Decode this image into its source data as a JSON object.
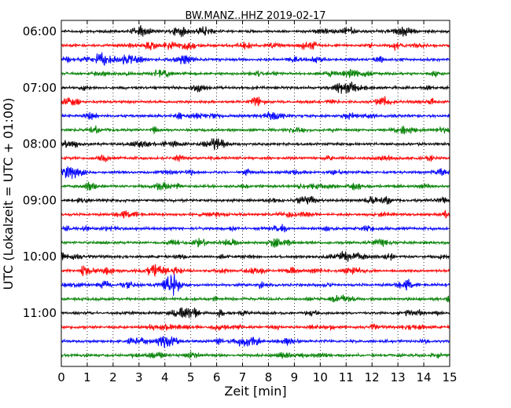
{
  "chart_data": {
    "type": "line",
    "title": "BW.MANZ..HHZ 2019-02-17",
    "xlabel": "Zeit  [min]",
    "ylabel": "UTC (Lokalzeit = UTC + 01:00)",
    "xlim": [
      0,
      15
    ],
    "x_ticks": [
      "0",
      "1",
      "2",
      "3",
      "4",
      "5",
      "6",
      "7",
      "8",
      "9",
      "10",
      "11",
      "12",
      "13",
      "14",
      "15"
    ],
    "y_tick_labels": [
      "06:00",
      "07:00",
      "08:00",
      "09:00",
      "10:00",
      "11:00"
    ],
    "grid": {
      "x": "dotted vertical at each minute",
      "y": false
    },
    "trace_colors": [
      "#000000",
      "#ff0000",
      "#0000ff",
      "#008000"
    ],
    "traces": [
      {
        "start": "06:00",
        "color": "#000000"
      },
      {
        "start": "06:15",
        "color": "#ff0000"
      },
      {
        "start": "06:30",
        "color": "#0000ff"
      },
      {
        "start": "06:45",
        "color": "#008000"
      },
      {
        "start": "07:00",
        "color": "#000000"
      },
      {
        "start": "07:15",
        "color": "#ff0000"
      },
      {
        "start": "07:30",
        "color": "#0000ff"
      },
      {
        "start": "07:45",
        "color": "#008000"
      },
      {
        "start": "08:00",
        "color": "#000000"
      },
      {
        "start": "08:15",
        "color": "#ff0000"
      },
      {
        "start": "08:30",
        "color": "#0000ff"
      },
      {
        "start": "08:45",
        "color": "#008000"
      },
      {
        "start": "09:00",
        "color": "#000000"
      },
      {
        "start": "09:15",
        "color": "#ff0000"
      },
      {
        "start": "09:30",
        "color": "#0000ff"
      },
      {
        "start": "09:45",
        "color": "#008000"
      },
      {
        "start": "10:00",
        "color": "#000000"
      },
      {
        "start": "10:15",
        "color": "#ff0000"
      },
      {
        "start": "10:30",
        "color": "#0000ff"
      },
      {
        "start": "10:45",
        "color": "#008000"
      },
      {
        "start": "11:00",
        "color": "#000000"
      },
      {
        "start": "11:15",
        "color": "#ff0000"
      },
      {
        "start": "11:30",
        "color": "#0000ff"
      },
      {
        "start": "11:45",
        "color": "#008000"
      }
    ]
  }
}
